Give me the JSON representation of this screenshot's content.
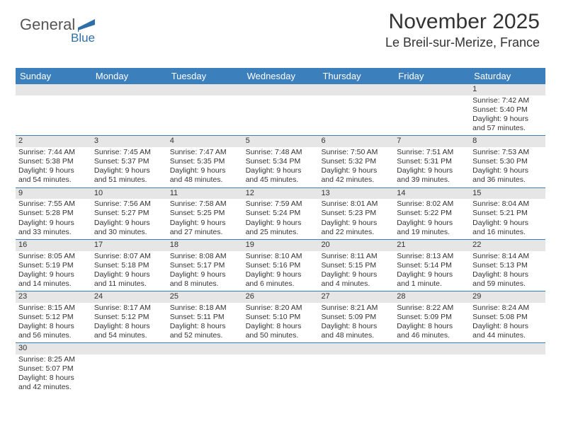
{
  "brand": {
    "part1": "General",
    "part2": "Blue",
    "logo_color": "#2f6fa8",
    "text_color": "#555"
  },
  "header": {
    "month": "November 2025",
    "location": "Le Breil-sur-Merize, France"
  },
  "colors": {
    "header_bg": "#3b7fbd",
    "daynum_bg": "#e6e6e6",
    "row_border": "#3b7fbd"
  },
  "columns": [
    "Sunday",
    "Monday",
    "Tuesday",
    "Wednesday",
    "Thursday",
    "Friday",
    "Saturday"
  ],
  "weeks": [
    [
      {
        "n": "",
        "lines": []
      },
      {
        "n": "",
        "lines": []
      },
      {
        "n": "",
        "lines": []
      },
      {
        "n": "",
        "lines": []
      },
      {
        "n": "",
        "lines": []
      },
      {
        "n": "",
        "lines": []
      },
      {
        "n": "1",
        "lines": [
          "Sunrise: 7:42 AM",
          "Sunset: 5:40 PM",
          "Daylight: 9 hours",
          "and 57 minutes."
        ]
      }
    ],
    [
      {
        "n": "2",
        "lines": [
          "Sunrise: 7:44 AM",
          "Sunset: 5:38 PM",
          "Daylight: 9 hours",
          "and 54 minutes."
        ]
      },
      {
        "n": "3",
        "lines": [
          "Sunrise: 7:45 AM",
          "Sunset: 5:37 PM",
          "Daylight: 9 hours",
          "and 51 minutes."
        ]
      },
      {
        "n": "4",
        "lines": [
          "Sunrise: 7:47 AM",
          "Sunset: 5:35 PM",
          "Daylight: 9 hours",
          "and 48 minutes."
        ]
      },
      {
        "n": "5",
        "lines": [
          "Sunrise: 7:48 AM",
          "Sunset: 5:34 PM",
          "Daylight: 9 hours",
          "and 45 minutes."
        ]
      },
      {
        "n": "6",
        "lines": [
          "Sunrise: 7:50 AM",
          "Sunset: 5:32 PM",
          "Daylight: 9 hours",
          "and 42 minutes."
        ]
      },
      {
        "n": "7",
        "lines": [
          "Sunrise: 7:51 AM",
          "Sunset: 5:31 PM",
          "Daylight: 9 hours",
          "and 39 minutes."
        ]
      },
      {
        "n": "8",
        "lines": [
          "Sunrise: 7:53 AM",
          "Sunset: 5:30 PM",
          "Daylight: 9 hours",
          "and 36 minutes."
        ]
      }
    ],
    [
      {
        "n": "9",
        "lines": [
          "Sunrise: 7:55 AM",
          "Sunset: 5:28 PM",
          "Daylight: 9 hours",
          "and 33 minutes."
        ]
      },
      {
        "n": "10",
        "lines": [
          "Sunrise: 7:56 AM",
          "Sunset: 5:27 PM",
          "Daylight: 9 hours",
          "and 30 minutes."
        ]
      },
      {
        "n": "11",
        "lines": [
          "Sunrise: 7:58 AM",
          "Sunset: 5:25 PM",
          "Daylight: 9 hours",
          "and 27 minutes."
        ]
      },
      {
        "n": "12",
        "lines": [
          "Sunrise: 7:59 AM",
          "Sunset: 5:24 PM",
          "Daylight: 9 hours",
          "and 25 minutes."
        ]
      },
      {
        "n": "13",
        "lines": [
          "Sunrise: 8:01 AM",
          "Sunset: 5:23 PM",
          "Daylight: 9 hours",
          "and 22 minutes."
        ]
      },
      {
        "n": "14",
        "lines": [
          "Sunrise: 8:02 AM",
          "Sunset: 5:22 PM",
          "Daylight: 9 hours",
          "and 19 minutes."
        ]
      },
      {
        "n": "15",
        "lines": [
          "Sunrise: 8:04 AM",
          "Sunset: 5:21 PM",
          "Daylight: 9 hours",
          "and 16 minutes."
        ]
      }
    ],
    [
      {
        "n": "16",
        "lines": [
          "Sunrise: 8:05 AM",
          "Sunset: 5:19 PM",
          "Daylight: 9 hours",
          "and 14 minutes."
        ]
      },
      {
        "n": "17",
        "lines": [
          "Sunrise: 8:07 AM",
          "Sunset: 5:18 PM",
          "Daylight: 9 hours",
          "and 11 minutes."
        ]
      },
      {
        "n": "18",
        "lines": [
          "Sunrise: 8:08 AM",
          "Sunset: 5:17 PM",
          "Daylight: 9 hours",
          "and 8 minutes."
        ]
      },
      {
        "n": "19",
        "lines": [
          "Sunrise: 8:10 AM",
          "Sunset: 5:16 PM",
          "Daylight: 9 hours",
          "and 6 minutes."
        ]
      },
      {
        "n": "20",
        "lines": [
          "Sunrise: 8:11 AM",
          "Sunset: 5:15 PM",
          "Daylight: 9 hours",
          "and 4 minutes."
        ]
      },
      {
        "n": "21",
        "lines": [
          "Sunrise: 8:13 AM",
          "Sunset: 5:14 PM",
          "Daylight: 9 hours",
          "and 1 minute."
        ]
      },
      {
        "n": "22",
        "lines": [
          "Sunrise: 8:14 AM",
          "Sunset: 5:13 PM",
          "Daylight: 8 hours",
          "and 59 minutes."
        ]
      }
    ],
    [
      {
        "n": "23",
        "lines": [
          "Sunrise: 8:15 AM",
          "Sunset: 5:12 PM",
          "Daylight: 8 hours",
          "and 56 minutes."
        ]
      },
      {
        "n": "24",
        "lines": [
          "Sunrise: 8:17 AM",
          "Sunset: 5:12 PM",
          "Daylight: 8 hours",
          "and 54 minutes."
        ]
      },
      {
        "n": "25",
        "lines": [
          "Sunrise: 8:18 AM",
          "Sunset: 5:11 PM",
          "Daylight: 8 hours",
          "and 52 minutes."
        ]
      },
      {
        "n": "26",
        "lines": [
          "Sunrise: 8:20 AM",
          "Sunset: 5:10 PM",
          "Daylight: 8 hours",
          "and 50 minutes."
        ]
      },
      {
        "n": "27",
        "lines": [
          "Sunrise: 8:21 AM",
          "Sunset: 5:09 PM",
          "Daylight: 8 hours",
          "and 48 minutes."
        ]
      },
      {
        "n": "28",
        "lines": [
          "Sunrise: 8:22 AM",
          "Sunset: 5:09 PM",
          "Daylight: 8 hours",
          "and 46 minutes."
        ]
      },
      {
        "n": "29",
        "lines": [
          "Sunrise: 8:24 AM",
          "Sunset: 5:08 PM",
          "Daylight: 8 hours",
          "and 44 minutes."
        ]
      }
    ],
    [
      {
        "n": "30",
        "lines": [
          "Sunrise: 8:25 AM",
          "Sunset: 5:07 PM",
          "Daylight: 8 hours",
          "and 42 minutes."
        ]
      },
      {
        "n": "",
        "lines": []
      },
      {
        "n": "",
        "lines": []
      },
      {
        "n": "",
        "lines": []
      },
      {
        "n": "",
        "lines": []
      },
      {
        "n": "",
        "lines": []
      },
      {
        "n": "",
        "lines": []
      }
    ]
  ]
}
